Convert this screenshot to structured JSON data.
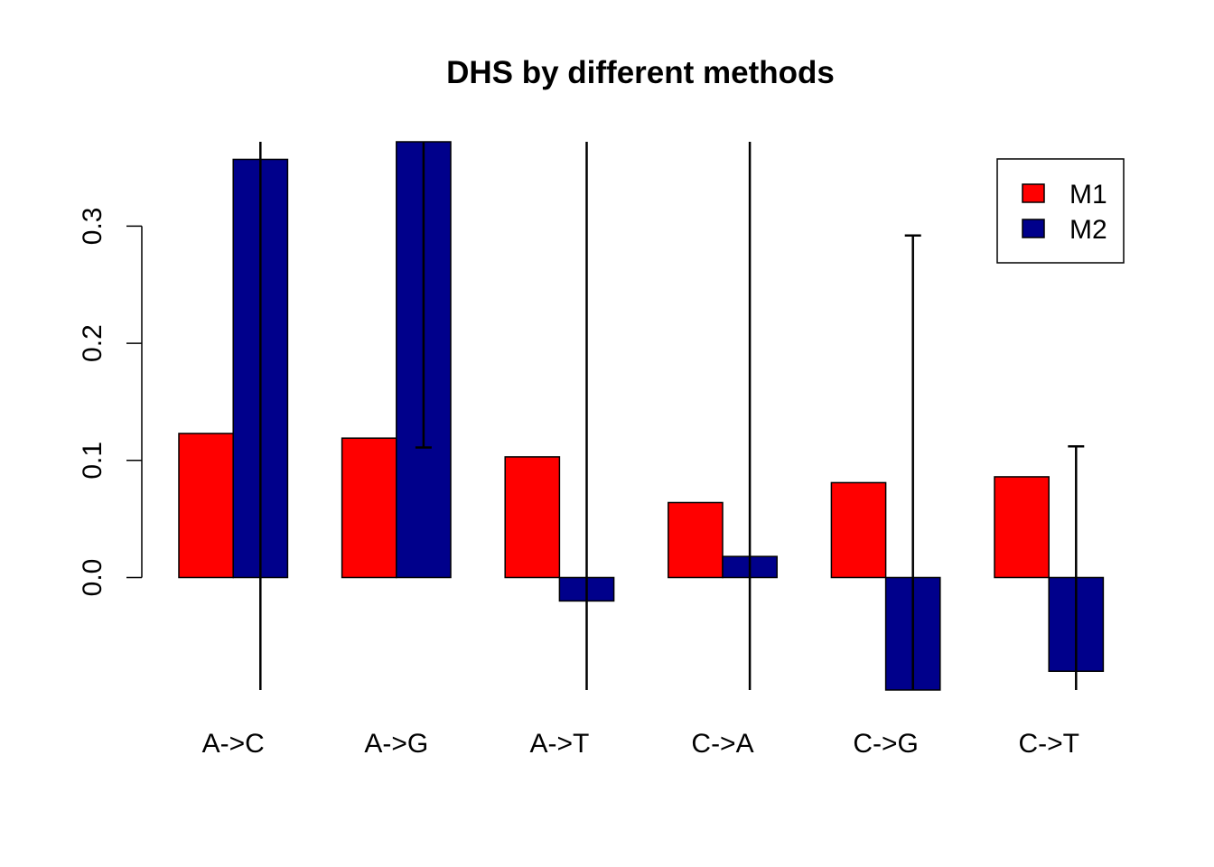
{
  "chart_data": {
    "type": "bar",
    "title": "DHS by different methods",
    "xlabel": "",
    "ylabel": "",
    "categories": [
      "A->C",
      "A->G",
      "A->T",
      "C->A",
      "C->G",
      "C->T"
    ],
    "series": [
      {
        "name": "M1",
        "color": "#ff0000",
        "values": [
          0.123,
          0.119,
          0.103,
          0.064,
          0.081,
          0.086
        ],
        "error_low": [
          null,
          null,
          null,
          null,
          null,
          null
        ],
        "error_high": [
          null,
          null,
          null,
          null,
          null,
          null
        ]
      },
      {
        "name": "M2",
        "color": "#00008b",
        "values": [
          0.357,
          0.372,
          -0.02,
          0.018,
          -0.096,
          -0.08
        ],
        "error_low": [
          -0.096,
          0.111,
          -0.096,
          -0.096,
          -0.096,
          -0.096
        ],
        "error_high": [
          0.372,
          0.372,
          0.372,
          0.372,
          0.292,
          0.112
        ]
      }
    ],
    "ylim": [
      -0.096,
      0.372
    ],
    "yticks": [
      0.0,
      0.1,
      0.2,
      0.3
    ],
    "ytick_labels": [
      "0.0",
      "0.1",
      "0.2",
      "0.3"
    ],
    "grid": false,
    "legend": {
      "position": "top-right",
      "entries": [
        "M1",
        "M2"
      ]
    }
  }
}
